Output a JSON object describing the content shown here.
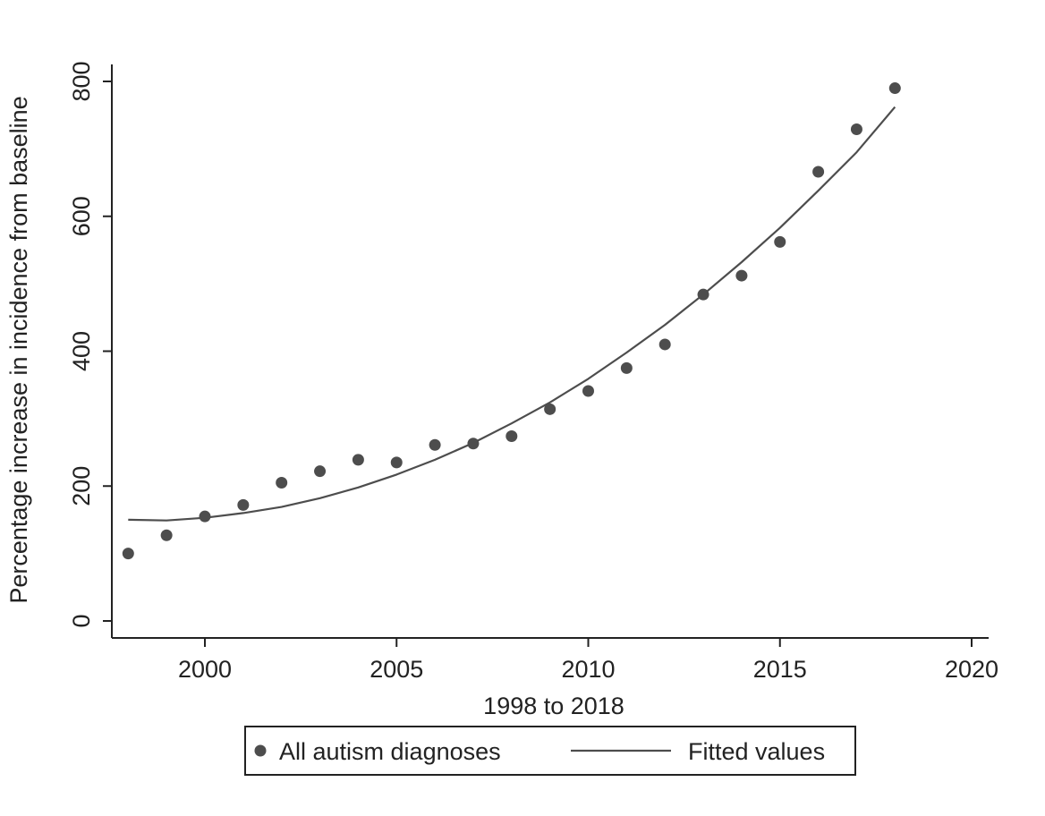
{
  "chart_data": {
    "type": "scatter",
    "xlabel": "1998 to 2018",
    "ylabel": "Percentage increase in incidence from baseline",
    "xlim": [
      1997.5,
      2020.5
    ],
    "ylim": [
      -25,
      825
    ],
    "xticks": [
      2000,
      2005,
      2010,
      2015,
      2020
    ],
    "yticks": [
      0,
      200,
      400,
      600,
      800
    ],
    "grid": false,
    "legend_position": "bottom",
    "colors": {
      "points": "#4d4d4d",
      "line": "#4d4d4d",
      "axis": "#222222"
    },
    "series": [
      {
        "name": "All autism diagnoses",
        "kind": "scatter",
        "x": [
          1998,
          1999,
          2000,
          2001,
          2002,
          2003,
          2004,
          2005,
          2006,
          2007,
          2008,
          2009,
          2010,
          2011,
          2012,
          2013,
          2014,
          2015,
          2016,
          2017,
          2018
        ],
        "y": [
          100,
          127,
          155,
          172,
          205,
          222,
          239,
          235,
          261,
          263,
          274,
          314,
          341,
          375,
          410,
          484,
          512,
          562,
          666,
          729,
          790
        ]
      },
      {
        "name": "Fitted values",
        "kind": "line",
        "x": [
          1998,
          1999,
          2000,
          2001,
          2002,
          2003,
          2004,
          2005,
          2006,
          2007,
          2008,
          2009,
          2010,
          2011,
          2012,
          2013,
          2014,
          2015,
          2016,
          2017,
          2018
        ],
        "y": [
          150,
          149,
          153,
          160,
          169,
          182,
          198,
          217,
          239,
          264,
          293,
          324,
          359,
          398,
          439,
          484,
          532,
          583,
          638,
          695,
          762
        ]
      }
    ]
  }
}
